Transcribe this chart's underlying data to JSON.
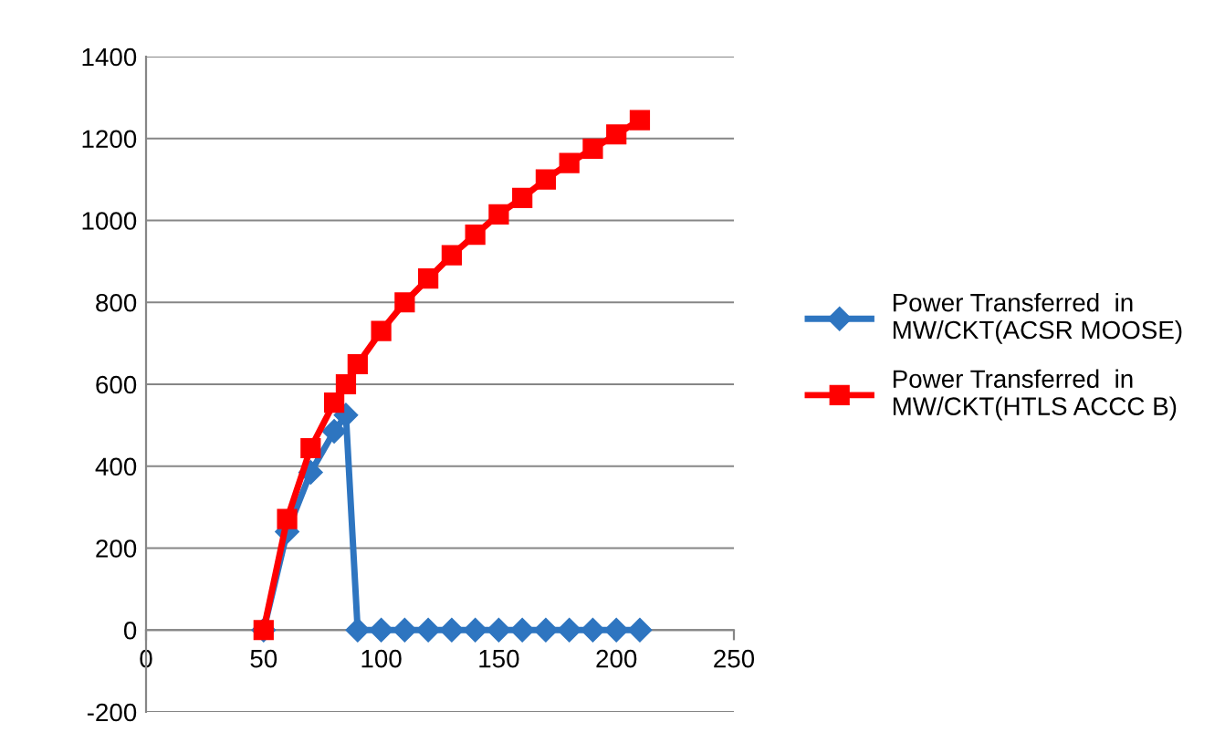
{
  "chart_data": {
    "type": "line",
    "x": [
      50,
      60,
      70,
      80,
      85,
      90,
      100,
      110,
      120,
      130,
      140,
      150,
      160,
      170,
      180,
      190,
      200,
      210
    ],
    "series": [
      {
        "name": "Power Transferred  in MW/CKT(ACSR MOOSE)",
        "color": "#2e75c0",
        "marker": "diamond",
        "values": [
          0,
          240,
          385,
          485,
          525,
          0,
          0,
          0,
          0,
          0,
          0,
          0,
          0,
          0,
          0,
          0,
          0,
          0
        ]
      },
      {
        "name": "Power Transferred  in MW/CKT(HTLS ACCC B)",
        "color": "#ff0000",
        "marker": "square",
        "values": [
          0,
          271,
          444,
          555,
          600,
          649,
          730,
          800,
          858,
          915,
          965,
          1015,
          1055,
          1100,
          1140,
          1175,
          1210,
          1245
        ]
      }
    ],
    "xlim": [
      0,
      250
    ],
    "xticks": [
      0,
      50,
      100,
      150,
      200,
      250
    ],
    "ylim": [
      -200,
      1400
    ],
    "yticks": [
      -200,
      0,
      200,
      400,
      600,
      800,
      1000,
      1200,
      1400
    ],
    "grid": "y",
    "legend": "right",
    "line_style": "solid"
  }
}
